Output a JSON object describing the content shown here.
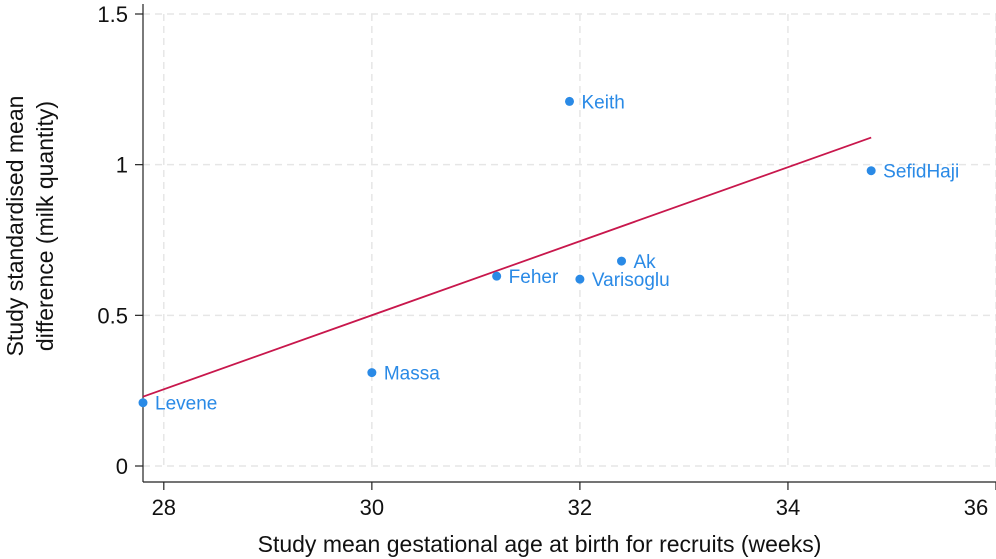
{
  "chart_data": {
    "type": "scatter",
    "title": "",
    "xlabel": "Study mean gestational age at birth for recruits (weeks)",
    "ylabel_lines": [
      "Study standardised mean",
      "difference (milk quantity)"
    ],
    "xlim": [
      27.8,
      36
    ],
    "ylim": [
      0,
      1.5
    ],
    "xticks": [
      28,
      30,
      32,
      34,
      36
    ],
    "yticks": [
      0,
      0.5,
      1,
      1.5
    ],
    "ytick_labels": [
      "0",
      "0.5",
      "1",
      "1.5"
    ],
    "grid": true,
    "points": [
      {
        "label": "Levene",
        "x": 27.8,
        "y": 0.21
      },
      {
        "label": "Massa",
        "x": 30.0,
        "y": 0.31
      },
      {
        "label": "Feher",
        "x": 31.2,
        "y": 0.63
      },
      {
        "label": "Varisoglu",
        "x": 32.0,
        "y": 0.62
      },
      {
        "label": "Ak",
        "x": 32.4,
        "y": 0.68
      },
      {
        "label": "Keith",
        "x": 31.9,
        "y": 1.21
      },
      {
        "label": "SefidHaji",
        "x": 34.8,
        "y": 0.98
      }
    ],
    "fit_line": {
      "x": [
        27.8,
        34.8
      ],
      "y": [
        0.23,
        1.09
      ]
    },
    "colors": {
      "points": "#2a8ae6",
      "fit_line": "#c8174c",
      "grid": "#e6e6e6",
      "axis": "#222222"
    }
  }
}
